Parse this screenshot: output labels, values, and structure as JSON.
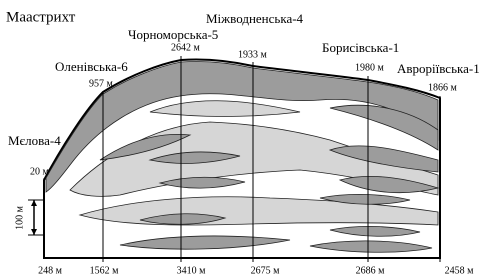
{
  "header": {
    "title": "Маастрихт"
  },
  "wells": [
    {
      "name": "Мєлова-4",
      "top": "20 м",
      "bottom": "248 м"
    },
    {
      "name": "Оленівська-6",
      "top": "957 м",
      "bottom": "1562 м"
    },
    {
      "name": "Чорноморська-5",
      "top": "2642 м",
      "bottom": "3410 м"
    },
    {
      "name": "Міжводненська-4",
      "top": "1933 м",
      "bottom": "2675 м"
    },
    {
      "name": "Борисівська-1",
      "top": "1980 м",
      "bottom": "2686 м"
    },
    {
      "name": "Авроріївська-1",
      "top": "1866 м",
      "bottom": "2458 м"
    }
  ],
  "scale": "100 м"
}
